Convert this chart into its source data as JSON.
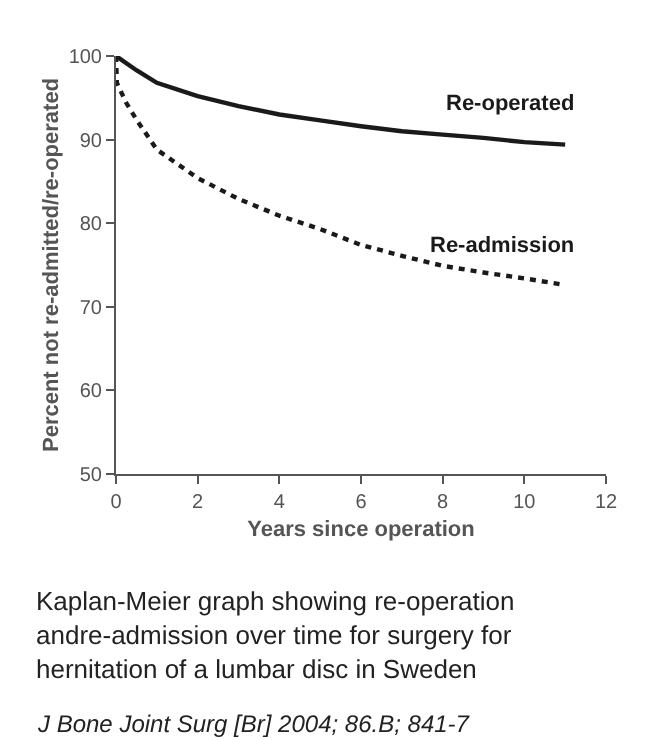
{
  "chart_data": {
    "type": "line",
    "xlabel": "Years since operation",
    "ylabel": "Percent not re-admitted/re-operated",
    "xlim": [
      0,
      12
    ],
    "xticks": [
      0,
      2,
      4,
      6,
      8,
      10,
      12
    ],
    "ylim": [
      50,
      100
    ],
    "yticks": [
      50,
      60,
      70,
      80,
      90,
      100
    ],
    "legend": false,
    "marker": "none",
    "series": [
      {
        "name": "Re-operated",
        "color": "#1a1a1a",
        "line_style": "solid",
        "x": [
          0,
          0.5,
          1,
          2,
          3,
          4,
          5,
          6,
          7,
          8,
          9,
          10,
          11
        ],
        "values": [
          100,
          98.3,
          96.8,
          95.2,
          94,
          93,
          92.3,
          91.6,
          91,
          90.6,
          90.2,
          89.7,
          89.4
        ]
      },
      {
        "name": "Re-admission",
        "color": "#1a1a1a",
        "line_style": "dotted",
        "x": [
          0,
          0.02,
          0.25,
          0.5,
          1,
          2,
          3,
          4,
          5,
          6,
          7,
          8,
          9,
          10,
          11
        ],
        "values": [
          100,
          96.8,
          94.4,
          92.4,
          88.8,
          85.4,
          82.9,
          80.9,
          79.3,
          77.4,
          76.1,
          74.9,
          74.1,
          73.4,
          72.6
        ]
      }
    ],
    "annotations": [
      "Kaplan-Meier graph showing re-operation\nandre-admission over time for surgery for\nhernitation of a lumbar disc in Sweden",
      "J Bone Joint Surg [Br] 2004; 86.B; 841-7"
    ]
  }
}
